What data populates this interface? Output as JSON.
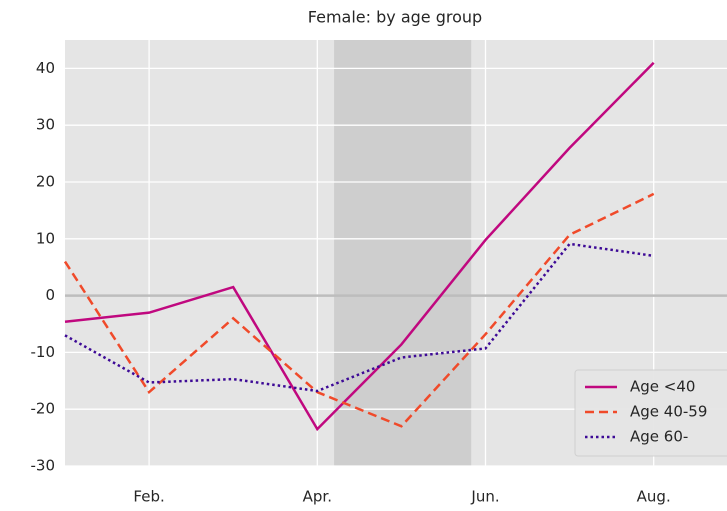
{
  "chart_data": {
    "type": "line",
    "title": "Female: by age group",
    "categories": [
      null,
      "Feb.",
      null,
      "Apr.",
      null,
      "Jun.",
      null,
      "Aug."
    ],
    "series": [
      {
        "name": "Age <40",
        "color": "#c0087f",
        "style": "solid",
        "values": [
          -4.6,
          -3,
          1.5,
          -23.5,
          -8.6,
          9.8,
          26,
          41
        ]
      },
      {
        "name": "Age 40-59",
        "color": "#f04a2a",
        "style": "dashed",
        "values": [
          6,
          -17,
          -4,
          -17,
          -23,
          -6.8,
          10.7,
          17.9
        ]
      },
      {
        "name": "Age 60-",
        "color": "#3d0a96",
        "style": "dotted",
        "values": [
          -7,
          -15.3,
          -14.7,
          -16.8,
          -10.9,
          -9.3,
          9.1,
          7
        ]
      }
    ],
    "ylim": [
      -30,
      45
    ],
    "yticks": [
      -30,
      -20,
      -10,
      0,
      10,
      20,
      30,
      40
    ],
    "grid": true,
    "zero_line": true,
    "shaded_span": [
      3.2,
      4.83
    ],
    "legend": "lower right"
  }
}
